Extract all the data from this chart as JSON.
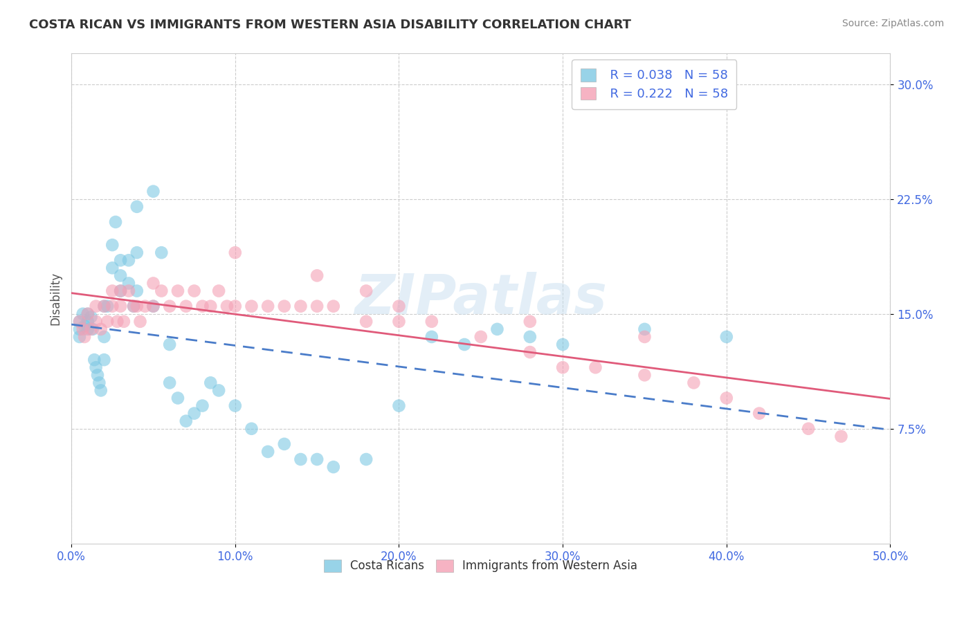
{
  "title": "COSTA RICAN VS IMMIGRANTS FROM WESTERN ASIA DISABILITY CORRELATION CHART",
  "source": "Source: ZipAtlas.com",
  "ylabel_label": "Disability",
  "x_min": 0.0,
  "x_max": 0.5,
  "y_min": 0.0,
  "y_max": 0.32,
  "x_ticks": [
    0.0,
    0.1,
    0.2,
    0.3,
    0.4,
    0.5
  ],
  "x_tick_labels": [
    "0.0%",
    "10.0%",
    "20.0%",
    "30.0%",
    "40.0%",
    "50.0%"
  ],
  "y_ticks": [
    0.075,
    0.15,
    0.225,
    0.3
  ],
  "y_tick_labels": [
    "7.5%",
    "15.0%",
    "22.5%",
    "30.0%"
  ],
  "grid_color": "#cccccc",
  "background_color": "#ffffff",
  "watermark": "ZIPatlas",
  "legend_r1": "R = 0.038",
  "legend_n1": "N = 58",
  "legend_r2": "R = 0.222",
  "legend_n2": "N = 58",
  "color_blue": "#7ec8e3",
  "color_blue_line": "#4a7cc9",
  "color_pink": "#f4a0b5",
  "color_pink_line": "#e05a7a",
  "legend_blue_label": "Costa Ricans",
  "legend_pink_label": "Immigrants from Western Asia",
  "costa_rican_x": [
    0.005,
    0.005,
    0.005,
    0.007,
    0.008,
    0.01,
    0.01,
    0.01,
    0.012,
    0.013,
    0.014,
    0.015,
    0.016,
    0.017,
    0.018,
    0.02,
    0.02,
    0.02,
    0.022,
    0.025,
    0.025,
    0.027,
    0.03,
    0.03,
    0.03,
    0.035,
    0.035,
    0.038,
    0.04,
    0.04,
    0.04,
    0.05,
    0.05,
    0.055,
    0.06,
    0.06,
    0.065,
    0.07,
    0.075,
    0.08,
    0.085,
    0.09,
    0.1,
    0.11,
    0.12,
    0.13,
    0.14,
    0.15,
    0.16,
    0.18,
    0.2,
    0.22,
    0.24,
    0.26,
    0.28,
    0.3,
    0.35,
    0.4
  ],
  "costa_rican_y": [
    0.145,
    0.14,
    0.135,
    0.15,
    0.142,
    0.15,
    0.145,
    0.14,
    0.148,
    0.14,
    0.12,
    0.115,
    0.11,
    0.105,
    0.1,
    0.155,
    0.135,
    0.12,
    0.155,
    0.195,
    0.18,
    0.21,
    0.185,
    0.175,
    0.165,
    0.185,
    0.17,
    0.155,
    0.22,
    0.19,
    0.165,
    0.23,
    0.155,
    0.19,
    0.13,
    0.105,
    0.095,
    0.08,
    0.085,
    0.09,
    0.105,
    0.1,
    0.09,
    0.075,
    0.06,
    0.065,
    0.055,
    0.055,
    0.05,
    0.055,
    0.09,
    0.135,
    0.13,
    0.14,
    0.135,
    0.13,
    0.14,
    0.135
  ],
  "western_asia_x": [
    0.005,
    0.007,
    0.008,
    0.01,
    0.012,
    0.015,
    0.015,
    0.018,
    0.02,
    0.022,
    0.025,
    0.025,
    0.028,
    0.03,
    0.03,
    0.032,
    0.035,
    0.038,
    0.04,
    0.042,
    0.045,
    0.05,
    0.05,
    0.055,
    0.06,
    0.065,
    0.07,
    0.075,
    0.08,
    0.085,
    0.09,
    0.095,
    0.1,
    0.11,
    0.12,
    0.13,
    0.14,
    0.15,
    0.16,
    0.18,
    0.2,
    0.22,
    0.25,
    0.28,
    0.3,
    0.32,
    0.35,
    0.38,
    0.4,
    0.42,
    0.45,
    0.47,
    0.1,
    0.15,
    0.18,
    0.2,
    0.28,
    0.35
  ],
  "western_asia_y": [
    0.145,
    0.14,
    0.135,
    0.15,
    0.14,
    0.155,
    0.145,
    0.14,
    0.155,
    0.145,
    0.165,
    0.155,
    0.145,
    0.165,
    0.155,
    0.145,
    0.165,
    0.155,
    0.155,
    0.145,
    0.155,
    0.17,
    0.155,
    0.165,
    0.155,
    0.165,
    0.155,
    0.165,
    0.155,
    0.155,
    0.165,
    0.155,
    0.155,
    0.155,
    0.155,
    0.155,
    0.155,
    0.155,
    0.155,
    0.145,
    0.145,
    0.145,
    0.135,
    0.125,
    0.115,
    0.115,
    0.11,
    0.105,
    0.095,
    0.085,
    0.075,
    0.07,
    0.19,
    0.175,
    0.165,
    0.155,
    0.145,
    0.135
  ]
}
